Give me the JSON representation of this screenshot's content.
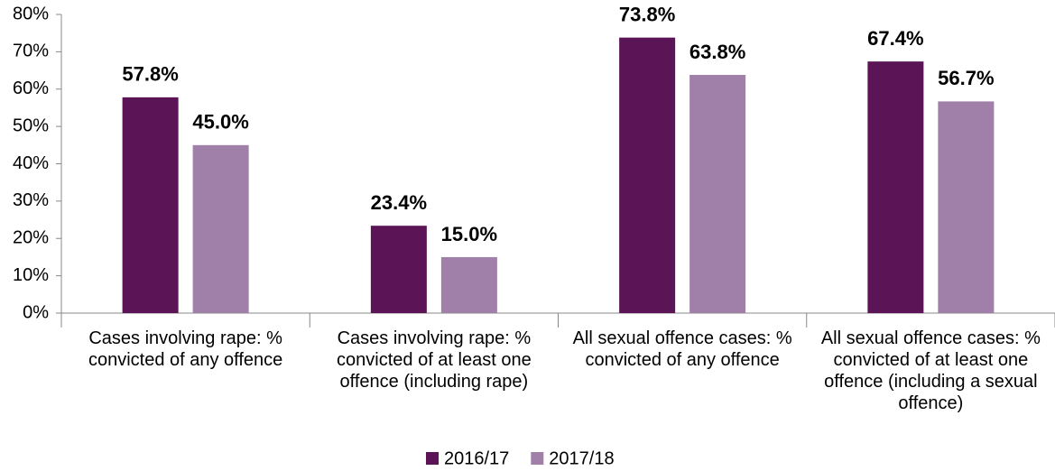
{
  "chart_data": {
    "type": "bar",
    "categories": [
      "Cases involving rape: % convicted of any offence",
      "Cases involving rape: % convicted of at least one offence (including rape)",
      "All sexual offence cases: % convicted of any offence",
      "All sexual offence cases: % convicted of at least one offence (including a sexual offence)"
    ],
    "series": [
      {
        "name": "2016/17",
        "color": "#5b1556",
        "values": [
          57.8,
          23.4,
          73.8,
          67.4
        ],
        "value_labels": [
          "57.8%",
          "23.4%",
          "73.8%",
          "67.4%"
        ]
      },
      {
        "name": "2017/18",
        "color": "#a07fa8",
        "values": [
          45.0,
          15.0,
          63.8,
          56.7
        ],
        "value_labels": [
          "45.0%",
          "15.0%",
          "63.8%",
          "56.7%"
        ]
      }
    ],
    "ylim": [
      0,
      80
    ],
    "yticks": [
      {
        "value": 0,
        "label": "0%"
      },
      {
        "value": 10,
        "label": "10%"
      },
      {
        "value": 20,
        "label": "20%"
      },
      {
        "value": 30,
        "label": "30%"
      },
      {
        "value": 40,
        "label": "40%"
      },
      {
        "value": 50,
        "label": "50%"
      },
      {
        "value": 60,
        "label": "60%"
      },
      {
        "value": 70,
        "label": "70%"
      },
      {
        "value": 80,
        "label": "80%"
      }
    ],
    "grid": false,
    "legend": "bottom"
  }
}
